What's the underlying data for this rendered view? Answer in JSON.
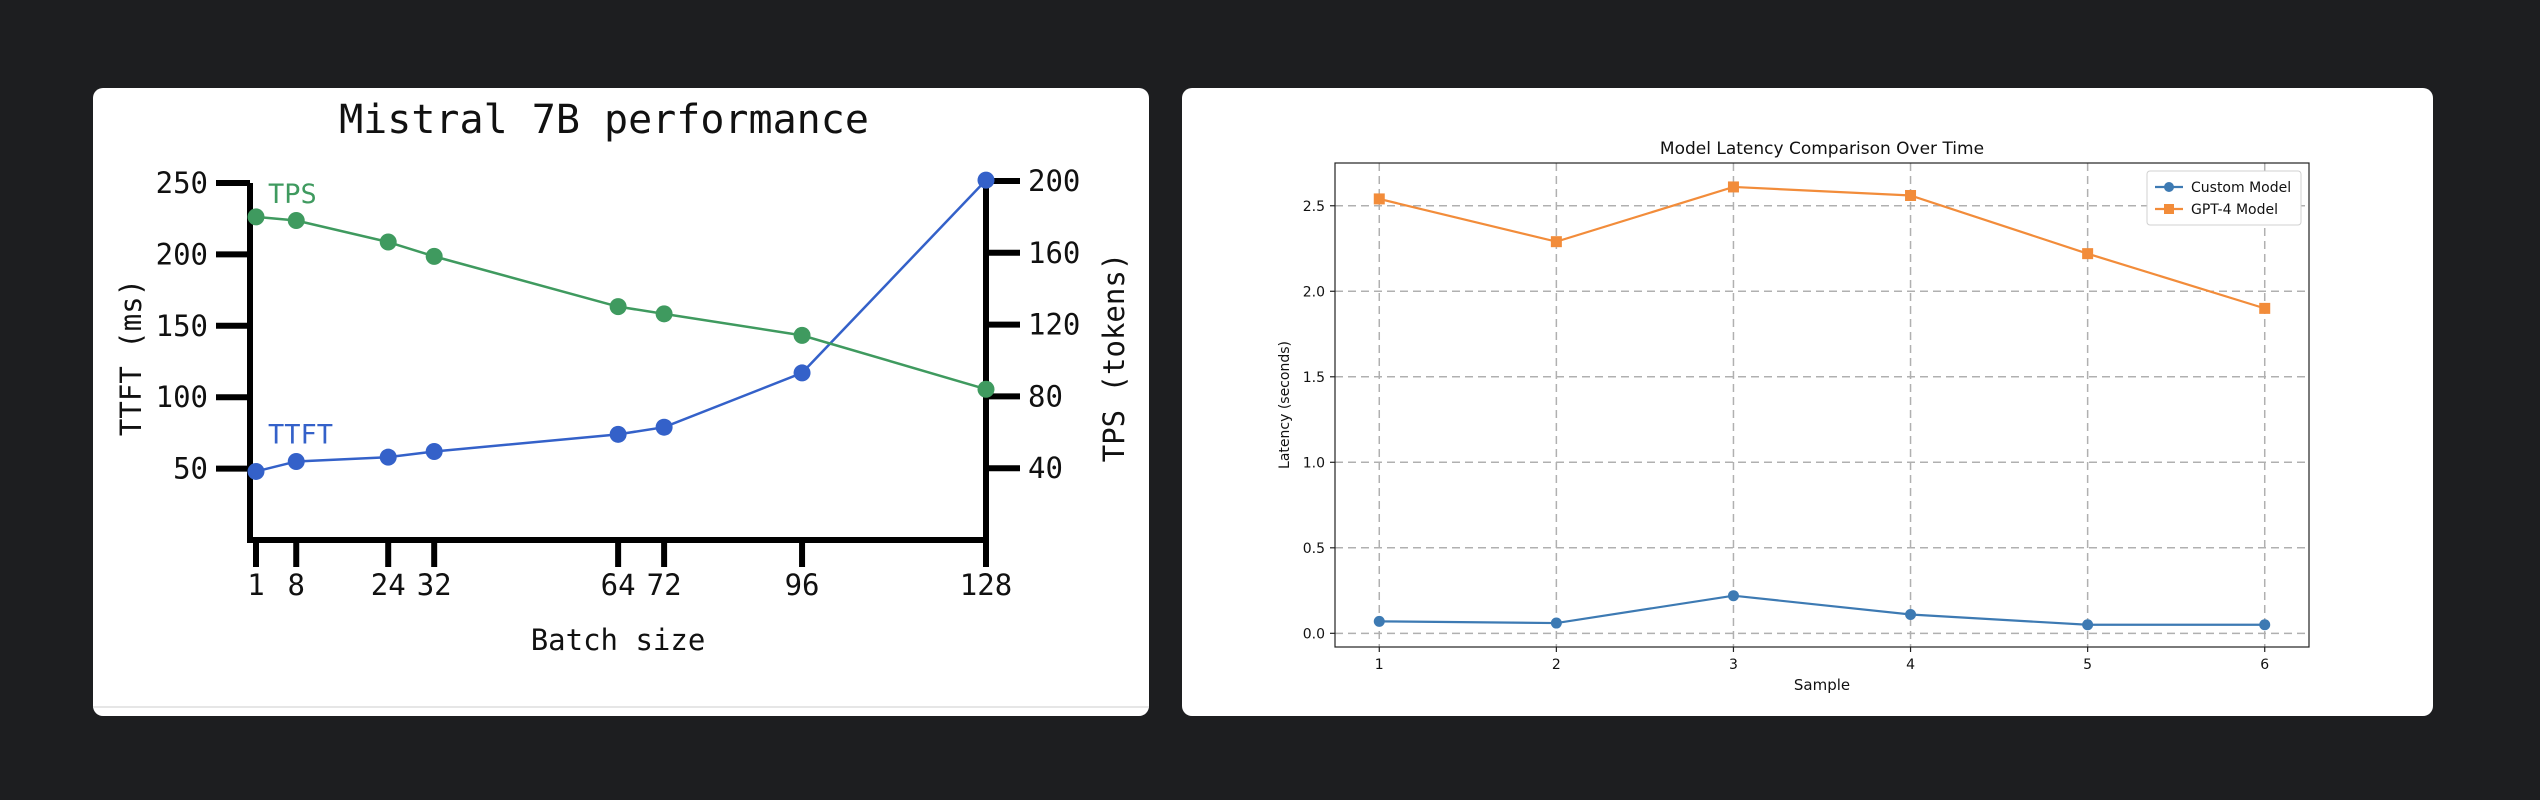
{
  "chart_data": [
    {
      "type": "line",
      "title": "Mistral 7B performance",
      "xlabel": "Batch size",
      "ylabel": "TTFT (ms)",
      "y2label": "TPS (tokens)",
      "x": [
        1,
        8,
        24,
        32,
        64,
        72,
        96,
        128
      ],
      "ylim": [
        0,
        250
      ],
      "y2lim": [
        0,
        200
      ],
      "yticks": [
        50,
        100,
        150,
        200,
        250
      ],
      "y2ticks": [
        40,
        80,
        120,
        160,
        200
      ],
      "series": [
        {
          "name": "TTFT",
          "axis": "left",
          "color": "#3461c9",
          "values": [
            48,
            55,
            58,
            62,
            74,
            79,
            117,
            252
          ]
        },
        {
          "name": "TPS",
          "axis": "right",
          "color": "#3f9a5f",
          "values": [
            180,
            178,
            166,
            158,
            130,
            126,
            114,
            84
          ]
        }
      ]
    },
    {
      "type": "line",
      "title": "Model Latency Comparison Over Time",
      "xlabel": "Sample",
      "ylabel": "Latency (seconds)",
      "x": [
        1,
        2,
        3,
        4,
        5,
        6
      ],
      "xlim": [
        0.75,
        6.25
      ],
      "ylim": [
        -0.08,
        2.75
      ],
      "yticks": [
        0.0,
        0.5,
        1.0,
        1.5,
        2.0,
        2.5
      ],
      "grid": true,
      "legend": "top-right",
      "series": [
        {
          "name": "Custom Model",
          "color": "#3d7ab3",
          "marker": "circle",
          "values": [
            0.07,
            0.06,
            0.22,
            0.11,
            0.05,
            0.05
          ]
        },
        {
          "name": "GPT-4 Model",
          "color": "#f28c3a",
          "marker": "square",
          "values": [
            2.54,
            2.29,
            2.61,
            2.56,
            2.22,
            1.9
          ]
        }
      ]
    }
  ]
}
